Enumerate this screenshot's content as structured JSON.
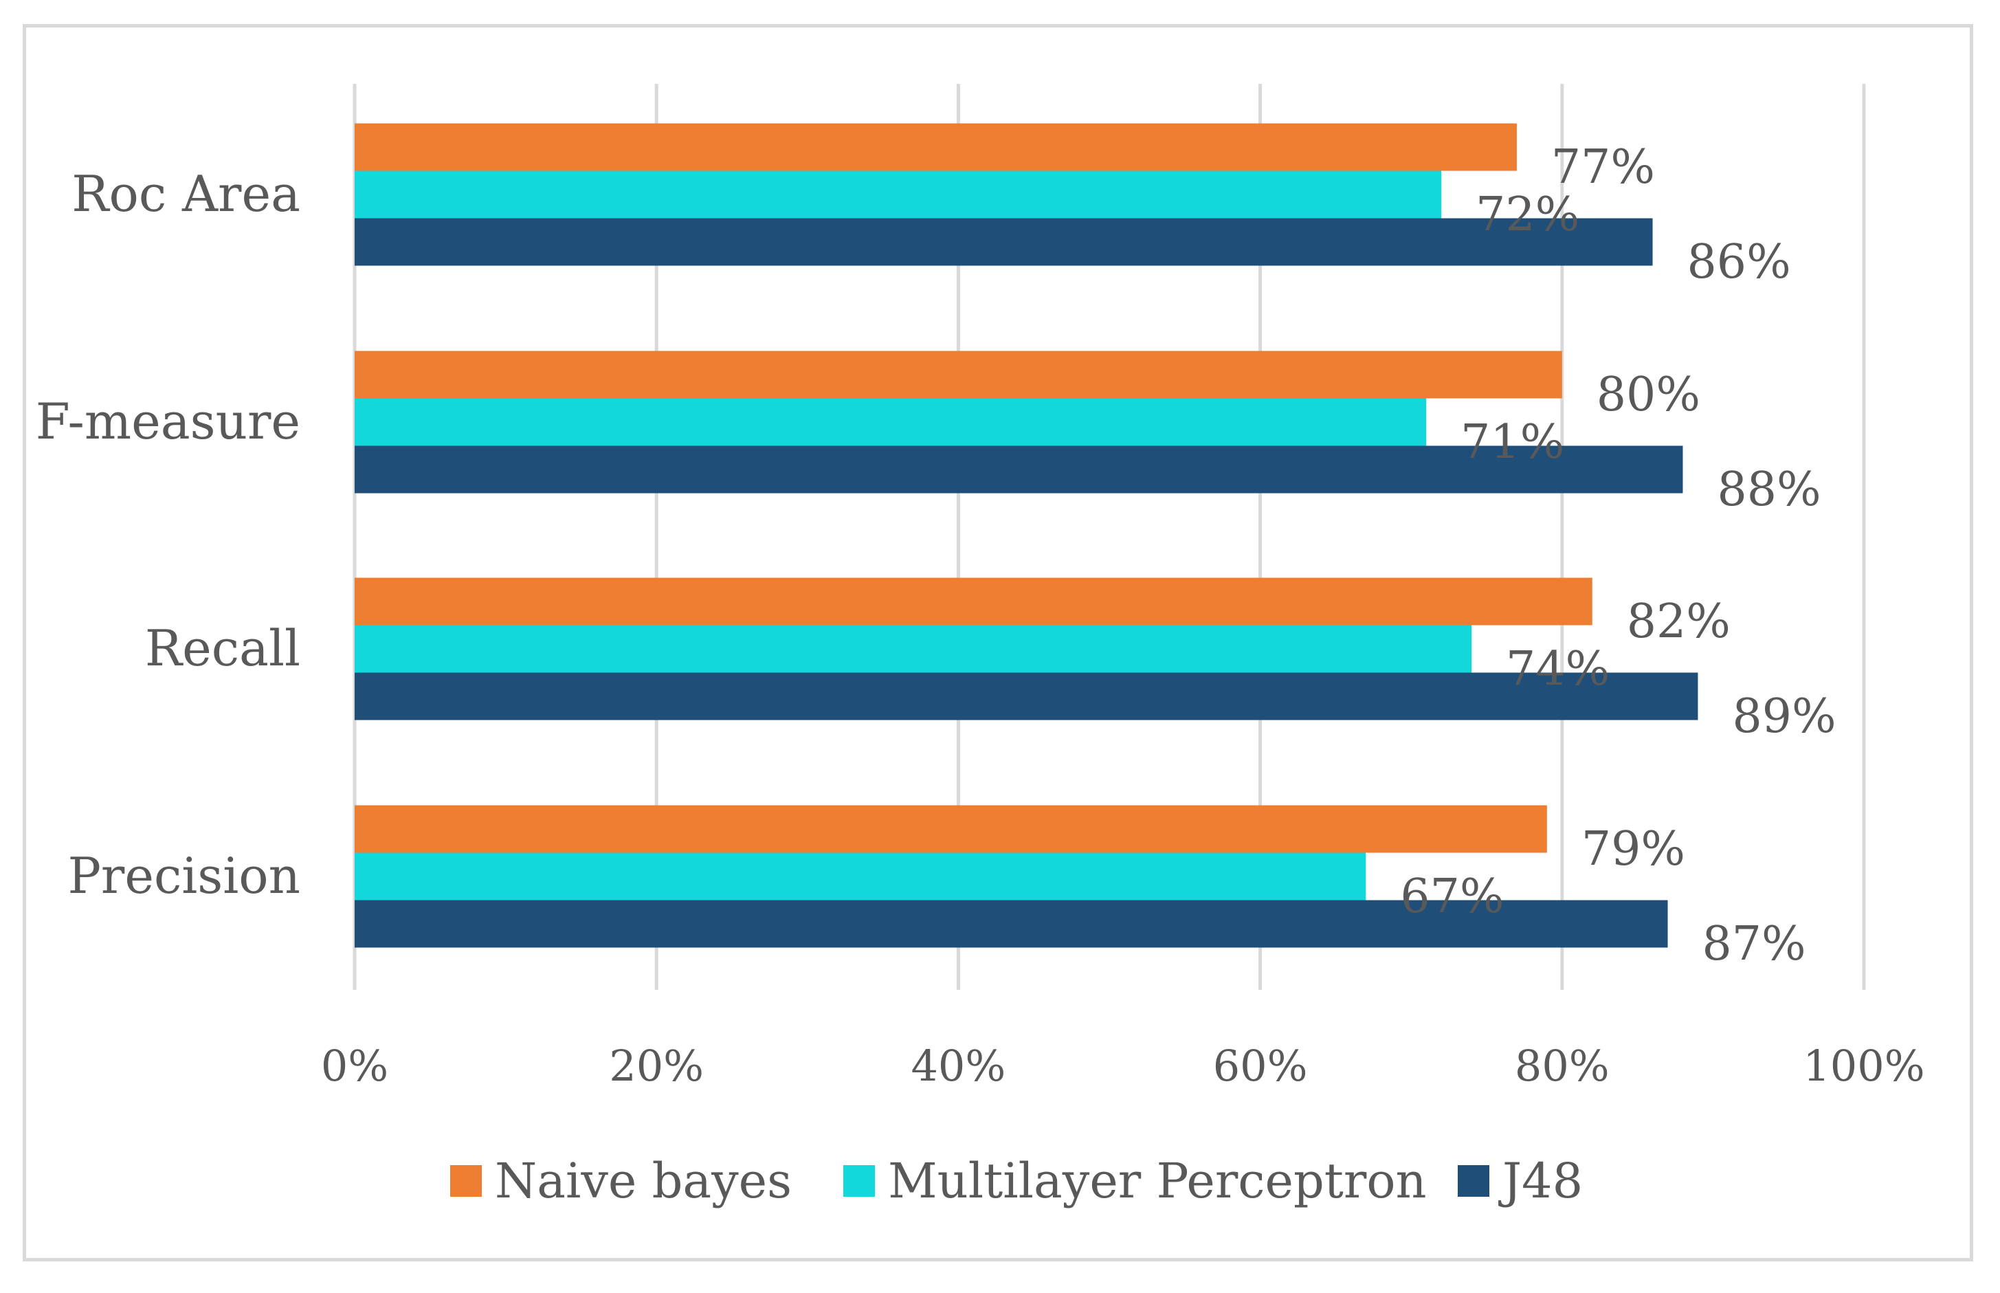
{
  "chart_data": {
    "type": "bar",
    "orientation": "horizontal",
    "categories": [
      "Roc Area",
      "F-measure",
      "Recall",
      "Precision"
    ],
    "series": [
      {
        "name": "Naive bayes",
        "color": "#ed7d31",
        "values": [
          77,
          80,
          82,
          79
        ],
        "labels": [
          "77%",
          "80%",
          "82%",
          "79%"
        ]
      },
      {
        "name": "Multilayer Perceptron",
        "color": "#12d8dc",
        "values": [
          72,
          71,
          74,
          67
        ],
        "labels": [
          "72%",
          "71%",
          "74%",
          "67%"
        ]
      },
      {
        "name": "J48",
        "color": "#1f4e79",
        "values": [
          86,
          88,
          89,
          87
        ],
        "labels": [
          "86%",
          "88%",
          "89%",
          "87%"
        ]
      }
    ],
    "xlim": [
      0,
      100
    ],
    "xticks": [
      0,
      20,
      40,
      60,
      80,
      100
    ],
    "xtick_labels": [
      "0%",
      "20%",
      "40%",
      "60%",
      "80%",
      "100%"
    ],
    "grid": true,
    "gridline_color": "#d9d9d9",
    "legend_position": "bottom"
  }
}
